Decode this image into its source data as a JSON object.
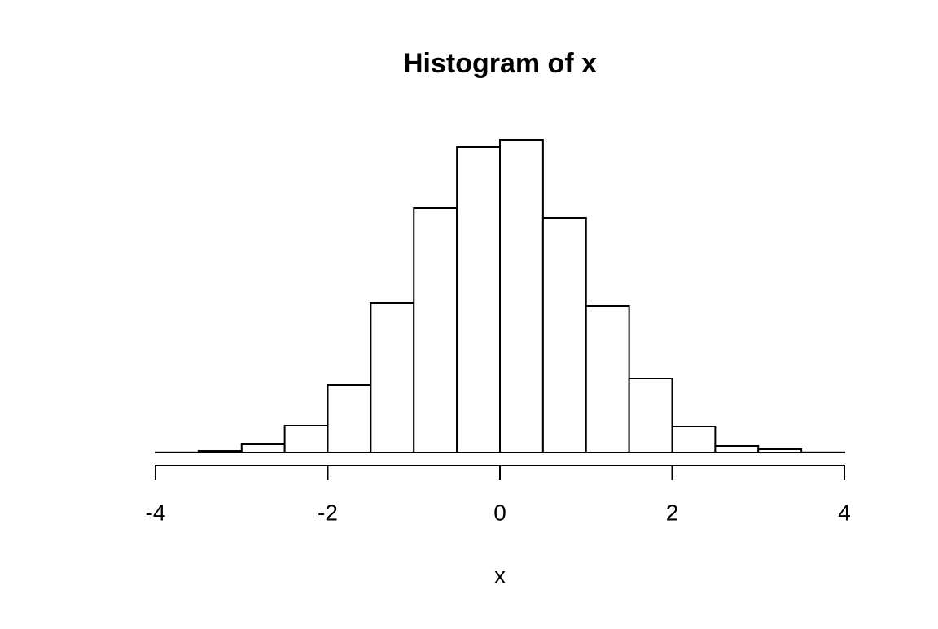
{
  "chart_data": {
    "type": "histogram",
    "title": "Histogram of x",
    "x_label": "x",
    "bins": [
      -4,
      -3.5,
      -3,
      -2.5,
      -2,
      -1.5,
      -1,
      -0.5,
      0,
      0.5,
      1,
      1.5,
      2,
      2.5,
      3,
      3.5,
      4
    ],
    "values": [
      1,
      10,
      50,
      165,
      415,
      920,
      1500,
      1875,
      1920,
      1440,
      900,
      455,
      160,
      40,
      20,
      1
    ],
    "color": "#ffffff",
    "edge_color": "#000000",
    "xlim": [
      -4,
      4
    ],
    "xticks": [
      -4,
      -2,
      0,
      2,
      4
    ],
    "ylim": [
      0,
      1920
    ]
  }
}
